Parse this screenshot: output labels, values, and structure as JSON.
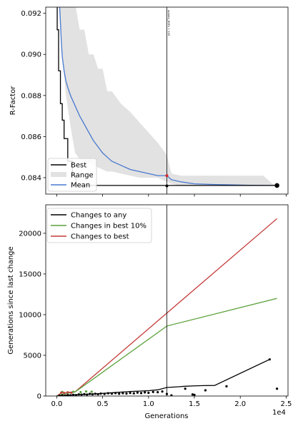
{
  "colors": {
    "best": "#000000",
    "range": "#e2e2e2",
    "mean": "#4878cf",
    "changes_any": "#000000",
    "changes_best10": "#5aa13a",
    "changes_best": "#c43c39",
    "marker_red": "#d62728"
  },
  "chart_data": [
    {
      "type": "line",
      "ylabel": "R-Factor",
      "xlim": [
        -1200,
        25200
      ],
      "ylim": [
        0.0832,
        0.0923
      ],
      "yticks": [
        0.084,
        0.086,
        0.088,
        0.09,
        0.092
      ],
      "ytick_labels": [
        "0.084",
        "0.086",
        "0.088",
        "0.090",
        "0.092"
      ],
      "grid": false,
      "legend": {
        "placement": "lower-left",
        "entries": [
          "Best",
          "Range",
          "Mean"
        ]
      },
      "vline": {
        "x": 12000,
        "label": "update_HOFs + 133"
      },
      "series": [
        {
          "name": "Best",
          "x": [
            0,
            50,
            50,
            200,
            200,
            400,
            400,
            600,
            600,
            800,
            800,
            1200,
            1200,
            1700,
            1700,
            2100,
            2100,
            24000
          ],
          "y": [
            0.0925,
            0.0925,
            0.0912,
            0.0912,
            0.0892,
            0.0892,
            0.0876,
            0.0876,
            0.0868,
            0.0868,
            0.0859,
            0.0859,
            0.0848,
            0.0848,
            0.0841,
            0.0841,
            0.08362,
            0.08362
          ]
        },
        {
          "name": "Mean",
          "x": [
            300,
            500,
            600,
            800,
            1000,
            1200,
            1500,
            1800,
            2000,
            2200,
            2500,
            3000,
            3500,
            4000,
            4500,
            5000,
            5500,
            6000,
            7000,
            8000,
            9000,
            10000,
            11000,
            12000,
            12500,
            13500,
            15000,
            17000,
            19000,
            21000,
            23000,
            24000
          ],
          "y": [
            0.0925,
            0.0906,
            0.0899,
            0.0892,
            0.0887,
            0.0884,
            0.088,
            0.0877,
            0.0875,
            0.0873,
            0.087,
            0.0866,
            0.0862,
            0.0858,
            0.0855,
            0.0852,
            0.085,
            0.0848,
            0.0846,
            0.0844,
            0.0843,
            0.0842,
            0.0841,
            0.0841,
            0.0839,
            0.0838,
            0.0837,
            0.08367,
            0.08365,
            0.08363,
            0.08362,
            0.08362
          ]
        }
      ],
      "range": {
        "x": [
          200,
          400,
          600,
          1000,
          1500,
          2000,
          2500,
          3000,
          3500,
          4000,
          4500,
          5000,
          5500,
          6000,
          7000,
          8000,
          9000,
          10000,
          11000,
          12000,
          12500,
          13500,
          15000,
          17000,
          19000,
          21000,
          22500,
          23500,
          24000
        ],
        "low": [
          0.0925,
          0.0915,
          0.09,
          0.088,
          0.0865,
          0.0852,
          0.0849,
          0.0848,
          0.0847,
          0.0846,
          0.0845,
          0.0844,
          0.0843,
          0.0843,
          0.0842,
          0.0841,
          0.084,
          0.084,
          0.084,
          0.0838,
          0.0837,
          0.0836,
          0.0836,
          0.0836,
          0.0836,
          0.0836,
          0.0836,
          0.0836,
          0.0836
        ],
        "high": [
          0.0925,
          0.0925,
          0.0925,
          0.0925,
          0.0925,
          0.0925,
          0.0912,
          0.0912,
          0.09,
          0.09,
          0.0893,
          0.0893,
          0.0882,
          0.0882,
          0.0876,
          0.0872,
          0.0867,
          0.0862,
          0.0857,
          0.0851,
          0.0842,
          0.0841,
          0.0841,
          0.0841,
          0.0841,
          0.0841,
          0.0841,
          0.0837,
          0.0836
        ]
      },
      "markers": [
        {
          "x": 12000,
          "y": 0.0836,
          "color": "black"
        },
        {
          "x": 12000,
          "y": 0.0841,
          "color": "red"
        },
        {
          "x": 24000,
          "y": 0.08362,
          "color": "black",
          "size": "large"
        }
      ]
    },
    {
      "type": "line",
      "xlabel": "Generations",
      "ylabel": "Generations since last change",
      "x_offset_label": "1e4",
      "xlim": [
        -1200,
        25200
      ],
      "ylim": [
        0,
        23500
      ],
      "xticks": [
        0,
        5000,
        10000,
        15000,
        20000,
        25000
      ],
      "xtick_labels": [
        "0.0",
        "0.5",
        "1.0",
        "1.5",
        "2.0",
        "2.5"
      ],
      "yticks": [
        0,
        5000,
        10000,
        15000,
        20000
      ],
      "ytick_labels": [
        "0",
        "5000",
        "10000",
        "15000",
        "20000"
      ],
      "grid": false,
      "legend": {
        "placement": "top-left",
        "entries": [
          "Changes to any",
          "Changes in best 10%",
          "Changes to best"
        ]
      },
      "vline": {
        "x": 12000
      },
      "series": [
        {
          "name": "Changes to any",
          "x": [
            0,
            1000,
            2000,
            3000,
            4000,
            5000,
            6000,
            7000,
            8000,
            9000,
            10000,
            11000,
            12000,
            13000,
            14000,
            15000,
            16000,
            17200,
            23200
          ],
          "y": [
            0,
            100,
            150,
            200,
            250,
            330,
            400,
            480,
            560,
            600,
            660,
            760,
            1050,
            1120,
            1200,
            1250,
            1280,
            1300,
            4500
          ]
        },
        {
          "name": "Changes in best 10%",
          "x": [
            0,
            500,
            1000,
            2000,
            12000,
            24000
          ],
          "y": [
            0,
            200,
            300,
            500,
            8600,
            12000
          ]
        },
        {
          "name": "Changes to best",
          "x": [
            0,
            500,
            1000,
            2000,
            24000
          ],
          "y": [
            0,
            400,
            430,
            520,
            21800
          ]
        }
      ],
      "scatter_any": {
        "x": [
          300,
          600,
          900,
          1200,
          1500,
          1800,
          2100,
          2400,
          2700,
          3000,
          3300,
          3600,
          3900,
          4200,
          4500,
          4800,
          5200,
          5600,
          6000,
          6400,
          6800,
          7200,
          7600,
          8000,
          8400,
          8800,
          9200,
          9600,
          10000,
          10500,
          11000,
          11500,
          12000,
          12500,
          14000,
          14800,
          15000,
          16200,
          18500,
          23200,
          24000
        ],
        "y": [
          40,
          80,
          60,
          120,
          90,
          150,
          110,
          200,
          170,
          230,
          180,
          260,
          210,
          280,
          220,
          300,
          260,
          340,
          300,
          360,
          280,
          350,
          310,
          380,
          330,
          420,
          360,
          450,
          400,
          500,
          470,
          560,
          250,
          80,
          900,
          200,
          150,
          700,
          1200,
          4500,
          900
        ]
      },
      "scatter_best10": {
        "x": [
          600,
          1200,
          1800,
          2600,
          3200,
          3800
        ],
        "y": [
          500,
          450,
          520,
          480,
          560,
          530
        ]
      },
      "scatter_best": {
        "x": [
          500,
          800,
          1200,
          1600
        ],
        "y": [
          420,
          380,
          450,
          410
        ]
      }
    }
  ]
}
